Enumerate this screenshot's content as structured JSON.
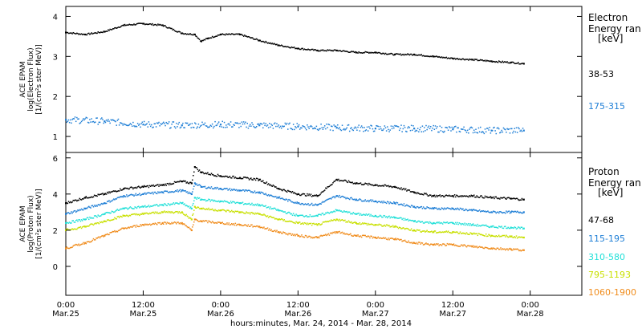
{
  "chart_data": [
    {
      "type": "scatter",
      "panel": "electron",
      "ylabel": [
        "ACE EPAM",
        "log(Electron Flux)",
        "[1/(cm²s ster MeV)]"
      ],
      "ylim": [
        0.6,
        4.25
      ],
      "yticks": [
        1,
        2,
        3,
        4
      ],
      "legend": {
        "title_lines": [
          "Electron",
          "Energy ran",
          "[keV]"
        ],
        "placement": "right"
      },
      "series": [
        {
          "name": "38-53",
          "color": "#000000",
          "x": [
            0,
            3,
            6,
            9,
            12,
            15,
            18,
            20,
            21,
            22,
            24,
            27,
            30,
            33,
            36,
            39,
            42,
            45,
            48,
            51,
            54,
            57,
            60,
            63,
            66,
            69,
            71
          ],
          "values": [
            3.6,
            3.55,
            3.62,
            3.78,
            3.82,
            3.78,
            3.58,
            3.55,
            3.38,
            3.45,
            3.55,
            3.55,
            3.4,
            3.28,
            3.2,
            3.15,
            3.15,
            3.1,
            3.1,
            3.05,
            3.05,
            3.0,
            2.95,
            2.92,
            2.88,
            2.85,
            2.82
          ]
        },
        {
          "name": "175-315",
          "color": "#1f7fd6",
          "x": [
            0,
            6,
            12,
            18,
            24,
            30,
            36,
            42,
            48,
            54,
            60,
            66,
            71
          ],
          "values": [
            1.42,
            1.38,
            1.3,
            1.28,
            1.3,
            1.28,
            1.25,
            1.22,
            1.2,
            1.2,
            1.18,
            1.15,
            1.15
          ]
        }
      ]
    },
    {
      "type": "scatter",
      "panel": "proton",
      "ylabel": [
        "ACE EPAM",
        "log(Proton Flux)",
        "[1/(cm²s ster MeV)]"
      ],
      "ylim": [
        -1.6,
        6.3
      ],
      "yticks": [
        0,
        2,
        4,
        6
      ],
      "xlabel": "hours:minutes, Mar. 24, 2014 - Mar. 28, 2014",
      "xlim": [
        0,
        80
      ],
      "xticks": [
        {
          "x": 0,
          "time": "0:00",
          "date": "Mar.25"
        },
        {
          "x": 12,
          "time": "12:00",
          "date": "Mar.25"
        },
        {
          "x": 24,
          "time": "0:00",
          "date": "Mar.26"
        },
        {
          "x": 36,
          "time": "12:00",
          "date": "Mar.26"
        },
        {
          "x": 48,
          "time": "0:00",
          "date": "Mar.27"
        },
        {
          "x": 60,
          "time": "12:00",
          "date": "Mar.27"
        },
        {
          "x": 72,
          "time": "0:00",
          "date": "Mar.28"
        }
      ],
      "legend": {
        "title_lines": [
          "Proton",
          "Energy ran",
          "[keV]"
        ],
        "placement": "right"
      },
      "series": [
        {
          "name": "47-68",
          "color": "#000000",
          "x": [
            0,
            3,
            6,
            9,
            12,
            15,
            18,
            19.5,
            20,
            21,
            24,
            27,
            30,
            33,
            36,
            39,
            42,
            45,
            48,
            51,
            54,
            57,
            60,
            63,
            66,
            69,
            71
          ],
          "values": [
            3.5,
            3.8,
            4.0,
            4.3,
            4.4,
            4.5,
            4.7,
            4.6,
            5.5,
            5.2,
            5.0,
            4.9,
            4.8,
            4.3,
            4.0,
            3.9,
            4.8,
            4.6,
            4.5,
            4.4,
            4.1,
            3.9,
            3.9,
            3.9,
            3.8,
            3.75,
            3.7
          ]
        },
        {
          "name": "115-195",
          "color": "#1f7fd6",
          "x": [
            0,
            3,
            6,
            9,
            12,
            15,
            18,
            19.5,
            20,
            21,
            24,
            27,
            30,
            33,
            36,
            39,
            42,
            45,
            48,
            51,
            54,
            57,
            60,
            63,
            66,
            69,
            71
          ],
          "values": [
            2.9,
            3.2,
            3.5,
            3.9,
            4.0,
            4.1,
            4.2,
            4.0,
            4.6,
            4.4,
            4.3,
            4.2,
            4.1,
            3.8,
            3.5,
            3.4,
            3.9,
            3.7,
            3.6,
            3.5,
            3.3,
            3.2,
            3.2,
            3.1,
            3.0,
            3.0,
            3.0
          ]
        },
        {
          "name": "310-580",
          "color": "#22e0d8",
          "x": [
            0,
            3,
            6,
            9,
            12,
            15,
            18,
            19.5,
            20,
            21,
            24,
            27,
            30,
            33,
            36,
            39,
            42,
            45,
            48,
            51,
            54,
            57,
            60,
            63,
            66,
            69,
            71
          ],
          "values": [
            2.4,
            2.6,
            2.9,
            3.2,
            3.3,
            3.4,
            3.5,
            3.2,
            3.8,
            3.7,
            3.6,
            3.5,
            3.4,
            3.1,
            2.8,
            2.8,
            3.1,
            2.9,
            2.8,
            2.7,
            2.5,
            2.4,
            2.4,
            2.3,
            2.2,
            2.15,
            2.1
          ]
        },
        {
          "name": "795-1193",
          "color": "#c8e000",
          "x": [
            0,
            3,
            6,
            9,
            12,
            15,
            18,
            19.5,
            20,
            21,
            24,
            27,
            30,
            33,
            36,
            39,
            42,
            45,
            48,
            51,
            54,
            57,
            60,
            63,
            66,
            69,
            71
          ],
          "values": [
            2.0,
            2.2,
            2.5,
            2.8,
            2.9,
            3.0,
            3.0,
            2.6,
            3.3,
            3.2,
            3.1,
            3.0,
            2.9,
            2.6,
            2.4,
            2.3,
            2.6,
            2.4,
            2.3,
            2.2,
            2.0,
            1.9,
            1.9,
            1.8,
            1.7,
            1.65,
            1.6
          ]
        },
        {
          "name": "1060-1900",
          "color": "#f08c1c",
          "x": [
            0,
            3,
            6,
            9,
            12,
            15,
            18,
            19.5,
            20,
            21,
            24,
            27,
            30,
            33,
            36,
            39,
            42,
            45,
            48,
            51,
            54,
            57,
            60,
            63,
            66,
            69,
            71
          ],
          "values": [
            1.0,
            1.3,
            1.7,
            2.1,
            2.3,
            2.4,
            2.4,
            2.0,
            2.6,
            2.5,
            2.4,
            2.3,
            2.2,
            1.9,
            1.7,
            1.6,
            1.9,
            1.7,
            1.6,
            1.5,
            1.3,
            1.2,
            1.2,
            1.1,
            1.0,
            0.95,
            0.9
          ]
        }
      ]
    }
  ]
}
